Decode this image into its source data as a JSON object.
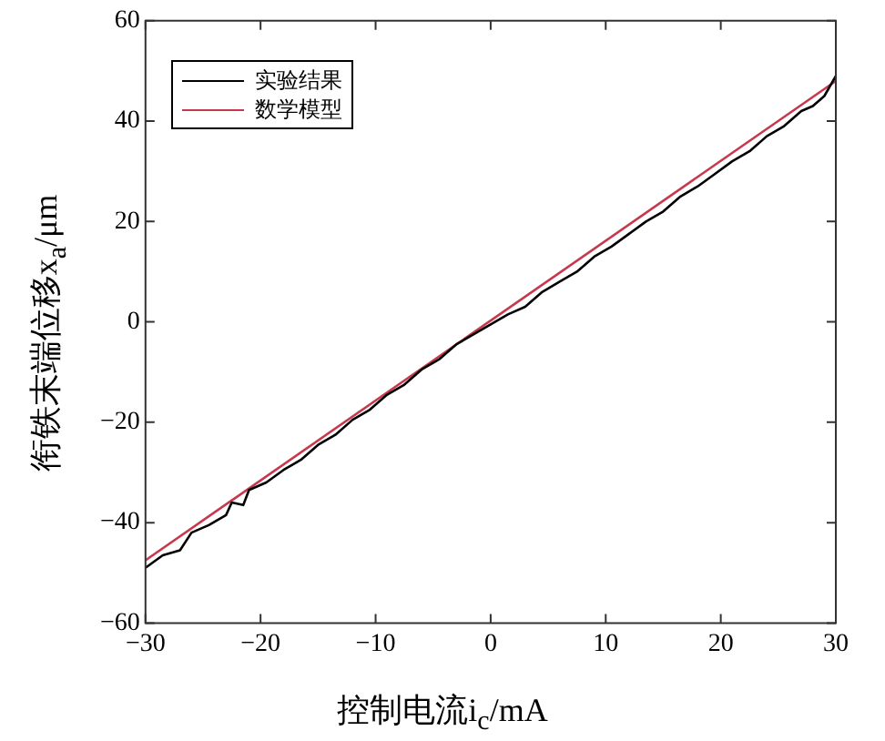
{
  "chart_data": {
    "type": "line",
    "xlabel": "控制电流i$_{c}$/mA",
    "ylabel": "衔铁末端位移x$_{a}$/μm",
    "xlim": [
      -30,
      30
    ],
    "xticks": [
      -30,
      -20,
      -10,
      0,
      10,
      20,
      30
    ],
    "ylim": [
      -60,
      60
    ],
    "yticks": [
      -60,
      -40,
      -20,
      0,
      20,
      40,
      60
    ],
    "legend": "top left",
    "series": [
      {
        "name": "实验结果",
        "color": "#000000",
        "x": [
          -30,
          -28.5,
          -27,
          -26,
          -24.5,
          -23,
          -22.5,
          -21.5,
          -21,
          -19.5,
          -18,
          -16.5,
          -15,
          -13.5,
          -12,
          -10.5,
          -9,
          -7.5,
          -6,
          -4.5,
          -3,
          -1.5,
          0,
          1.5,
          3,
          4.5,
          6,
          7.5,
          9,
          10.5,
          12,
          13.5,
          15,
          16.5,
          18,
          19.5,
          21,
          22.5,
          24,
          25.5,
          27,
          28,
          29,
          30
        ],
        "values": [
          -49,
          -46.5,
          -45.5,
          -42,
          -40.5,
          -38.5,
          -36,
          -36.5,
          -33.5,
          -32,
          -29.5,
          -27.5,
          -24.5,
          -22.5,
          -19.5,
          -17.5,
          -14.5,
          -12.5,
          -9.5,
          -7.5,
          -4.5,
          -2.5,
          -0.5,
          1.5,
          3,
          6,
          8,
          10,
          13,
          15,
          17.5,
          20,
          22,
          25,
          27,
          29.5,
          32,
          34,
          37,
          39,
          42,
          43,
          45,
          49
        ]
      },
      {
        "name": "数学模型",
        "color": "#c8384c",
        "x": [
          -30,
          30
        ],
        "values": [
          -47.5,
          48
        ]
      }
    ]
  }
}
